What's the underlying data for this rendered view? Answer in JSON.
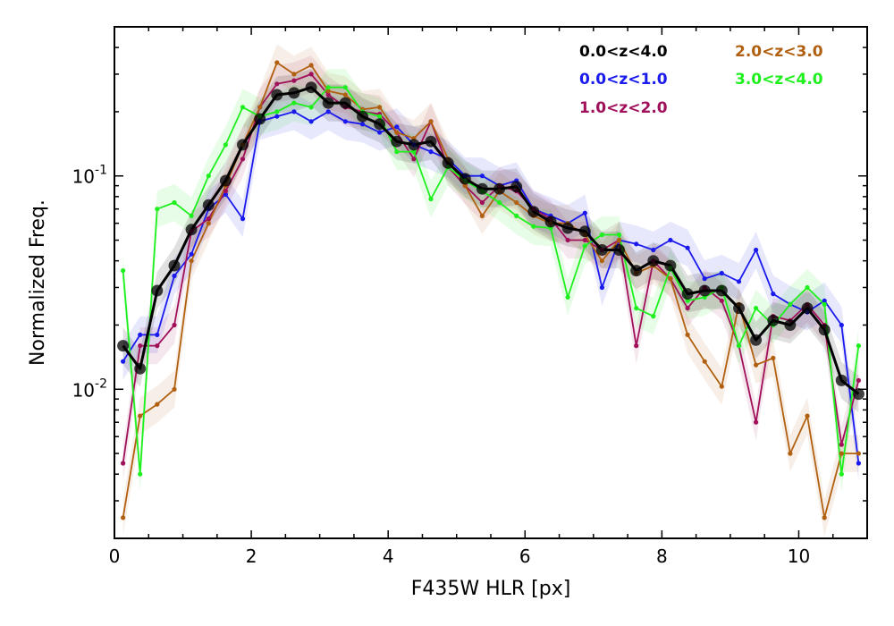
{
  "chart_data": {
    "type": "line",
    "title": "",
    "xlabel": "F435W HLR [px]",
    "ylabel": "Normalized Freq.",
    "xlim": [
      0,
      11
    ],
    "ylim": [
      0.002,
      0.5
    ],
    "y_scale": "log",
    "x_ticks": [
      0,
      2,
      4,
      6,
      8,
      10
    ],
    "x_tick_labels": [
      "0",
      "2",
      "4",
      "6",
      "8",
      "10"
    ],
    "y_ticks": [
      0.01,
      0.1
    ],
    "y_tick_labels": [
      {
        "base": "10",
        "exp": "-2"
      },
      {
        "base": "10",
        "exp": "-1"
      }
    ],
    "grid": false,
    "legend_position": "top-right",
    "x": [
      0.125,
      0.375,
      0.625,
      0.875,
      1.125,
      1.375,
      1.625,
      1.875,
      2.125,
      2.375,
      2.625,
      2.875,
      3.125,
      3.375,
      3.625,
      3.875,
      4.125,
      4.375,
      4.625,
      4.875,
      5.125,
      5.375,
      5.625,
      5.875,
      6.125,
      6.375,
      6.625,
      6.875,
      7.125,
      7.375,
      7.625,
      7.875,
      8.125,
      8.375,
      8.625,
      8.875,
      9.125,
      9.375,
      9.625,
      9.875,
      10.125,
      10.375,
      10.625,
      10.875
    ],
    "series": [
      {
        "name": "0.0<z<4.0",
        "color": "#000000",
        "values": [
          0.016,
          0.0125,
          0.029,
          0.038,
          0.056,
          0.073,
          0.095,
          0.14,
          0.185,
          0.24,
          0.245,
          0.26,
          0.22,
          0.22,
          0.19,
          0.175,
          0.145,
          0.14,
          0.145,
          0.115,
          0.097,
          0.087,
          0.087,
          0.089,
          0.068,
          0.061,
          0.057,
          0.055,
          0.045,
          0.045,
          0.036,
          0.04,
          0.038,
          0.028,
          0.029,
          0.029,
          0.024,
          0.017,
          0.021,
          0.02,
          0.024,
          0.019,
          0.011,
          0.0095
        ]
      },
      {
        "name": "0.0<z<1.0",
        "color": "#1a1aee",
        "values": [
          0.0135,
          0.018,
          0.018,
          0.034,
          0.043,
          0.07,
          0.082,
          0.063,
          0.18,
          0.19,
          0.2,
          0.18,
          0.2,
          0.18,
          0.175,
          0.16,
          0.17,
          0.14,
          0.13,
          0.12,
          0.1,
          0.1,
          0.09,
          0.095,
          0.07,
          0.065,
          0.06,
          0.067,
          0.03,
          0.05,
          0.048,
          0.045,
          0.05,
          0.046,
          0.033,
          0.035,
          0.032,
          0.045,
          0.028,
          0.025,
          0.023,
          0.026,
          0.02,
          0.0045
        ]
      },
      {
        "name": "1.0<z<2.0",
        "color": "#a0105a",
        "values": [
          0.0045,
          0.016,
          0.016,
          0.02,
          0.055,
          0.063,
          0.085,
          0.12,
          0.21,
          0.27,
          0.28,
          0.3,
          0.24,
          0.21,
          0.2,
          0.195,
          0.16,
          0.12,
          0.18,
          0.11,
          0.09,
          0.075,
          0.09,
          0.085,
          0.07,
          0.063,
          0.05,
          0.05,
          0.045,
          0.05,
          0.016,
          0.04,
          0.033,
          0.024,
          0.03,
          0.026,
          0.016,
          0.007,
          0.022,
          0.021,
          0.025,
          0.02,
          0.0055,
          0.011
        ]
      },
      {
        "name": "2.0<z<3.0",
        "color": "#b06010",
        "values": [
          0.0025,
          0.0075,
          0.0085,
          0.01,
          0.04,
          0.06,
          0.09,
          0.14,
          0.21,
          0.34,
          0.3,
          0.33,
          0.25,
          0.24,
          0.205,
          0.21,
          0.16,
          0.15,
          0.18,
          0.12,
          0.09,
          0.065,
          0.085,
          0.075,
          0.065,
          0.06,
          0.06,
          0.053,
          0.04,
          0.05,
          0.035,
          0.038,
          0.033,
          0.018,
          0.0135,
          0.0103,
          0.025,
          0.013,
          0.014,
          0.005,
          0.0075,
          0.0025,
          0.005,
          0.005
        ]
      },
      {
        "name": "3.0<z<4.0",
        "color": "#1ef01e",
        "values": [
          0.036,
          0.004,
          0.07,
          0.075,
          0.065,
          0.1,
          0.14,
          0.21,
          0.19,
          0.2,
          0.22,
          0.21,
          0.26,
          0.26,
          0.2,
          0.19,
          0.13,
          0.13,
          0.078,
          0.11,
          0.095,
          0.085,
          0.075,
          0.065,
          0.058,
          0.057,
          0.027,
          0.047,
          0.053,
          0.053,
          0.024,
          0.022,
          0.037,
          0.026,
          0.027,
          0.03,
          0.016,
          0.024,
          0.02,
          0.025,
          0.03,
          0.025,
          0.004,
          0.016
        ]
      }
    ]
  }
}
